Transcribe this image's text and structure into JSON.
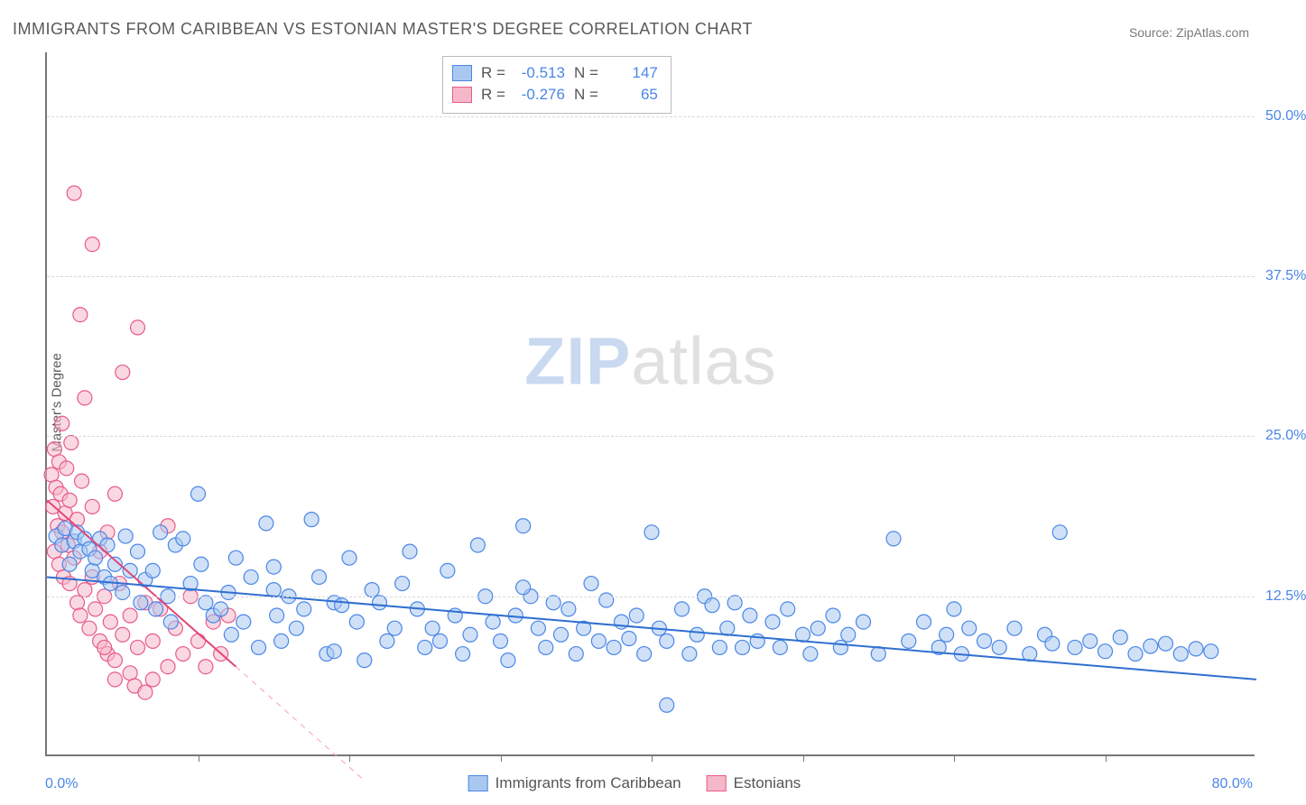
{
  "title": "IMMIGRANTS FROM CARIBBEAN VS ESTONIAN MASTER'S DEGREE CORRELATION CHART",
  "source": "Source: ZipAtlas.com",
  "watermark": {
    "bold": "ZIP",
    "light": "atlas"
  },
  "chart": {
    "type": "scatter",
    "background_color": "#ffffff",
    "grid_color": "#d9d9d9",
    "axis_color": "#777777",
    "x_axis": {
      "min": 0.0,
      "max": 80.0,
      "min_label": "0.0%",
      "max_label": "80.0%",
      "tick_step": 10.0
    },
    "y_axis": {
      "min": 0.0,
      "max": 55.0,
      "title": "Master's Degree",
      "ticks": [
        12.5,
        25.0,
        37.5,
        50.0
      ],
      "tick_labels": [
        "12.5%",
        "25.0%",
        "37.5%",
        "50.0%"
      ]
    },
    "marker_radius": 8,
    "marker_opacity": 0.55,
    "series": [
      {
        "id": "caribbean",
        "label": "Immigrants from Caribbean",
        "color_fill": "#a9c8f0",
        "color_stroke": "#4a86e8",
        "r_value": "-0.513",
        "n_value": "147",
        "trend": {
          "x1": 0,
          "y1": 14.0,
          "x2": 80,
          "y2": 6.0,
          "color": "#2f6fd0",
          "width": 2
        },
        "points": [
          [
            0.6,
            17.2
          ],
          [
            1.0,
            16.5
          ],
          [
            1.2,
            17.8
          ],
          [
            1.5,
            15.0
          ],
          [
            1.8,
            16.8
          ],
          [
            2.0,
            17.5
          ],
          [
            2.2,
            16.0
          ],
          [
            2.5,
            17.0
          ],
          [
            2.8,
            16.2
          ],
          [
            3.0,
            14.5
          ],
          [
            3.2,
            15.5
          ],
          [
            3.5,
            17.0
          ],
          [
            3.8,
            14.0
          ],
          [
            4.0,
            16.5
          ],
          [
            4.2,
            13.5
          ],
          [
            4.5,
            15.0
          ],
          [
            5.0,
            12.8
          ],
          [
            5.2,
            17.2
          ],
          [
            5.5,
            14.5
          ],
          [
            6.0,
            16.0
          ],
          [
            6.2,
            12.0
          ],
          [
            6.5,
            13.8
          ],
          [
            7.0,
            14.5
          ],
          [
            7.2,
            11.5
          ],
          [
            7.5,
            17.5
          ],
          [
            8.0,
            12.5
          ],
          [
            8.2,
            10.5
          ],
          [
            8.5,
            16.5
          ],
          [
            9.0,
            17.0
          ],
          [
            9.5,
            13.5
          ],
          [
            10.0,
            20.5
          ],
          [
            10.2,
            15.0
          ],
          [
            10.5,
            12.0
          ],
          [
            11.0,
            11.0
          ],
          [
            11.5,
            11.5
          ],
          [
            12.0,
            12.8
          ],
          [
            12.2,
            9.5
          ],
          [
            12.5,
            15.5
          ],
          [
            13.0,
            10.5
          ],
          [
            13.5,
            14.0
          ],
          [
            14.0,
            8.5
          ],
          [
            14.5,
            18.2
          ],
          [
            15.0,
            13.0
          ],
          [
            15.2,
            11.0
          ],
          [
            15.5,
            9.0
          ],
          [
            16.0,
            12.5
          ],
          [
            16.5,
            10.0
          ],
          [
            17.0,
            11.5
          ],
          [
            17.5,
            18.5
          ],
          [
            18.0,
            14.0
          ],
          [
            18.5,
            8.0
          ],
          [
            19.0,
            12.0
          ],
          [
            19.5,
            11.8
          ],
          [
            20.0,
            15.5
          ],
          [
            20.5,
            10.5
          ],
          [
            21.0,
            7.5
          ],
          [
            21.5,
            13.0
          ],
          [
            22.0,
            12.0
          ],
          [
            22.5,
            9.0
          ],
          [
            23.0,
            10.0
          ],
          [
            23.5,
            13.5
          ],
          [
            24.0,
            16.0
          ],
          [
            24.5,
            11.5
          ],
          [
            25.0,
            8.5
          ],
          [
            25.5,
            10.0
          ],
          [
            26.0,
            9.0
          ],
          [
            26.5,
            14.5
          ],
          [
            27.0,
            11.0
          ],
          [
            27.5,
            8.0
          ],
          [
            28.0,
            9.5
          ],
          [
            28.5,
            16.5
          ],
          [
            29.0,
            12.5
          ],
          [
            29.5,
            10.5
          ],
          [
            30.0,
            9.0
          ],
          [
            30.5,
            7.5
          ],
          [
            31.0,
            11.0
          ],
          [
            31.5,
            18.0
          ],
          [
            32.0,
            12.5
          ],
          [
            32.5,
            10.0
          ],
          [
            33.0,
            8.5
          ],
          [
            33.5,
            12.0
          ],
          [
            34.0,
            9.5
          ],
          [
            34.5,
            11.5
          ],
          [
            35.0,
            8.0
          ],
          [
            35.5,
            10.0
          ],
          [
            36.0,
            13.5
          ],
          [
            36.5,
            9.0
          ],
          [
            37.0,
            12.2
          ],
          [
            37.5,
            8.5
          ],
          [
            38.0,
            10.5
          ],
          [
            39.0,
            11.0
          ],
          [
            39.5,
            8.0
          ],
          [
            40.0,
            17.5
          ],
          [
            40.5,
            10.0
          ],
          [
            41.0,
            9.0
          ],
          [
            42.0,
            11.5
          ],
          [
            42.5,
            8.0
          ],
          [
            43.0,
            9.5
          ],
          [
            43.5,
            12.5
          ],
          [
            44.0,
            11.8
          ],
          [
            44.5,
            8.5
          ],
          [
            45.0,
            10.0
          ],
          [
            45.5,
            12.0
          ],
          [
            46.0,
            8.5
          ],
          [
            46.5,
            11.0
          ],
          [
            47.0,
            9.0
          ],
          [
            48.0,
            10.5
          ],
          [
            48.5,
            8.5
          ],
          [
            49.0,
            11.5
          ],
          [
            50.0,
            9.5
          ],
          [
            50.5,
            8.0
          ],
          [
            51.0,
            10.0
          ],
          [
            52.0,
            11.0
          ],
          [
            52.5,
            8.5
          ],
          [
            53.0,
            9.5
          ],
          [
            54.0,
            10.5
          ],
          [
            55.0,
            8.0
          ],
          [
            56.0,
            17.0
          ],
          [
            57.0,
            9.0
          ],
          [
            58.0,
            10.5
          ],
          [
            59.0,
            8.5
          ],
          [
            59.5,
            9.5
          ],
          [
            60.0,
            11.5
          ],
          [
            60.5,
            8.0
          ],
          [
            61.0,
            10.0
          ],
          [
            62.0,
            9.0
          ],
          [
            63.0,
            8.5
          ],
          [
            64.0,
            10.0
          ],
          [
            65.0,
            8.0
          ],
          [
            66.0,
            9.5
          ],
          [
            66.5,
            8.8
          ],
          [
            67.0,
            17.5
          ],
          [
            68.0,
            8.5
          ],
          [
            69.0,
            9.0
          ],
          [
            70.0,
            8.2
          ],
          [
            71.0,
            9.3
          ],
          [
            72.0,
            8.0
          ],
          [
            73.0,
            8.6
          ],
          [
            74.0,
            8.8
          ],
          [
            75.0,
            8.0
          ],
          [
            76.0,
            8.4
          ],
          [
            77.0,
            8.2
          ],
          [
            41.0,
            4.0
          ],
          [
            15.0,
            14.8
          ],
          [
            19.0,
            8.2
          ],
          [
            31.5,
            13.2
          ],
          [
            38.5,
            9.2
          ]
        ]
      },
      {
        "id": "estonians",
        "label": "Estonians",
        "color_fill": "#f5b8c8",
        "color_stroke": "#e85a8a",
        "r_value": "-0.276",
        "n_value": "65",
        "trend": {
          "x1": 0,
          "y1": 20.0,
          "x2": 12.5,
          "y2": 7.0,
          "color": "#e04878",
          "width": 2
        },
        "trend_dash": {
          "x1": 12.5,
          "y1": 7.0,
          "x2": 21,
          "y2": -1.9,
          "color": "#f0a0b8",
          "width": 1
        },
        "points": [
          [
            0.3,
            22.0
          ],
          [
            0.4,
            19.5
          ],
          [
            0.5,
            24.0
          ],
          [
            0.5,
            16.0
          ],
          [
            0.6,
            21.0
          ],
          [
            0.7,
            18.0
          ],
          [
            0.8,
            23.0
          ],
          [
            0.8,
            15.0
          ],
          [
            0.9,
            20.5
          ],
          [
            1.0,
            17.5
          ],
          [
            1.0,
            26.0
          ],
          [
            1.1,
            14.0
          ],
          [
            1.2,
            19.0
          ],
          [
            1.3,
            22.5
          ],
          [
            1.4,
            16.5
          ],
          [
            1.5,
            13.5
          ],
          [
            1.5,
            20.0
          ],
          [
            1.6,
            24.5
          ],
          [
            1.8,
            15.5
          ],
          [
            2.0,
            18.5
          ],
          [
            2.0,
            12.0
          ],
          [
            2.2,
            11.0
          ],
          [
            2.3,
            21.5
          ],
          [
            2.5,
            13.0
          ],
          [
            2.5,
            28.0
          ],
          [
            2.8,
            10.0
          ],
          [
            3.0,
            14.0
          ],
          [
            3.0,
            19.5
          ],
          [
            3.2,
            11.5
          ],
          [
            3.5,
            9.0
          ],
          [
            3.5,
            16.0
          ],
          [
            3.8,
            12.5
          ],
          [
            4.0,
            8.0
          ],
          [
            4.0,
            17.5
          ],
          [
            4.2,
            10.5
          ],
          [
            4.5,
            7.5
          ],
          [
            4.5,
            20.5
          ],
          [
            5.0,
            9.5
          ],
          [
            5.0,
            30.0
          ],
          [
            5.5,
            11.0
          ],
          [
            5.5,
            6.5
          ],
          [
            6.0,
            8.5
          ],
          [
            6.0,
            33.5
          ],
          [
            6.5,
            12.0
          ],
          [
            7.0,
            9.0
          ],
          [
            7.0,
            6.0
          ],
          [
            7.5,
            11.5
          ],
          [
            8.0,
            7.0
          ],
          [
            8.0,
            18.0
          ],
          [
            8.5,
            10.0
          ],
          [
            9.0,
            8.0
          ],
          [
            9.5,
            12.5
          ],
          [
            10.0,
            9.0
          ],
          [
            10.5,
            7.0
          ],
          [
            11.0,
            10.5
          ],
          [
            11.5,
            8.0
          ],
          [
            12.0,
            11.0
          ],
          [
            1.8,
            44.0
          ],
          [
            3.0,
            40.0
          ],
          [
            2.2,
            34.5
          ],
          [
            4.5,
            6.0
          ],
          [
            5.8,
            5.5
          ],
          [
            6.5,
            5.0
          ],
          [
            3.8,
            8.5
          ],
          [
            4.8,
            13.5
          ]
        ]
      }
    ],
    "bottom_legend": [
      {
        "label": "Immigrants from Caribbean",
        "fill": "#a9c8f0",
        "stroke": "#4a86e8"
      },
      {
        "label": "Estonians",
        "fill": "#f5b8c8",
        "stroke": "#e85a8a"
      }
    ],
    "stats_legend_labels": {
      "r": "R  =",
      "n": "N  ="
    }
  }
}
